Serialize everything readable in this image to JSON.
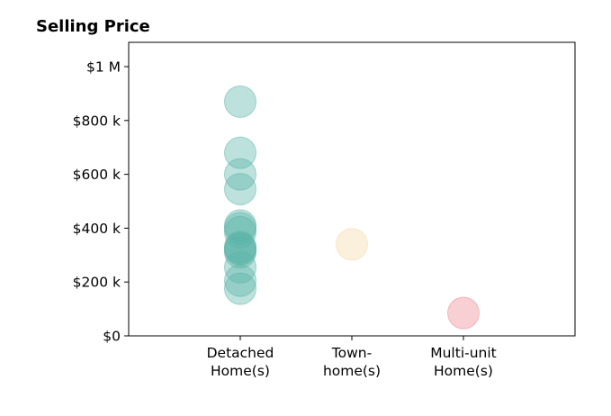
{
  "chart_data": {
    "type": "scatter",
    "title": "Selling Price",
    "xlabel": "",
    "ylabel": "",
    "categories": [
      [
        "Detached",
        "Home(s)"
      ],
      [
        "Town-",
        "home(s)"
      ],
      [
        "Multi-unit",
        "Home(s)"
      ]
    ],
    "xlim": [
      0,
      4
    ],
    "ylim": [
      0,
      1000000
    ],
    "y_ticks": [
      {
        "value": 0,
        "label": "$0"
      },
      {
        "value": 200000,
        "label": "$200 k"
      },
      {
        "value": 400000,
        "label": "$400 k"
      },
      {
        "value": 600000,
        "label": "$600 k"
      },
      {
        "value": 800000,
        "label": "$800 k"
      },
      {
        "value": 1000000,
        "label": "$1 M"
      }
    ],
    "grid": false,
    "legend": "none",
    "series": [
      {
        "category": 0,
        "color": "#5ab4a8",
        "values": [
          870000,
          680000,
          600000,
          545000,
          410000,
          400000,
          385000,
          330000,
          325000,
          320000,
          310000,
          255000,
          205000,
          175000
        ]
      },
      {
        "category": 1,
        "color": "#f2d9a6",
        "values": [
          340000
        ]
      },
      {
        "category": 2,
        "color": "#ee8891",
        "values": [
          85000
        ]
      }
    ]
  }
}
